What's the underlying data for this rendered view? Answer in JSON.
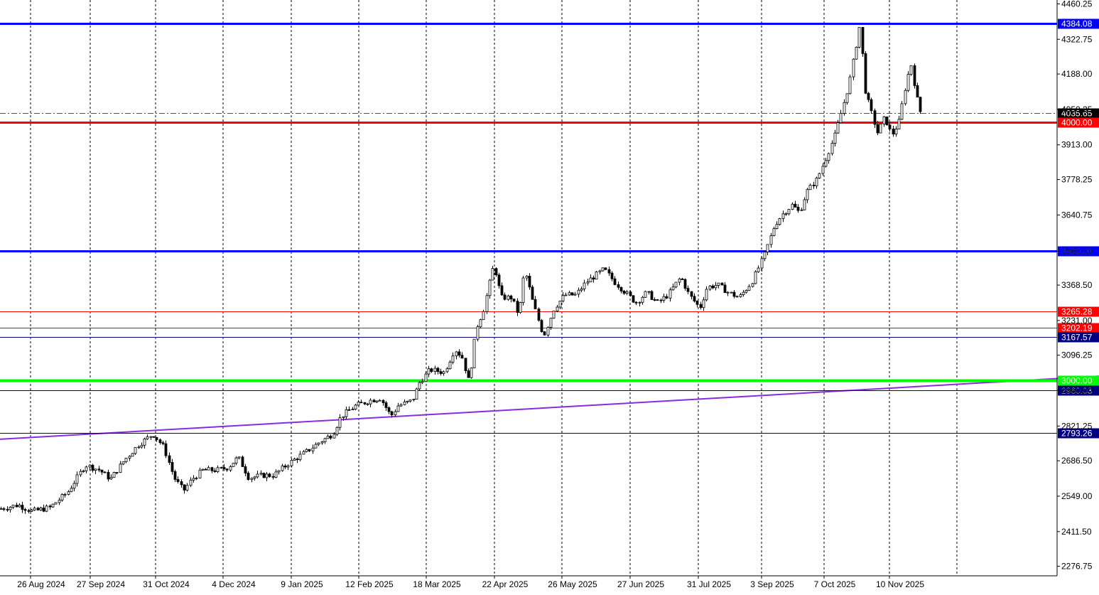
{
  "chart_data": {
    "type": "candlestick",
    "symbol": "",
    "y_axis": {
      "ticks": [
        "4460.25",
        "4322.75",
        "4188.00",
        "4050.25",
        "3913.00",
        "3778.25",
        "3640.75",
        "3500.00",
        "3368.50",
        "3231.00",
        "3096.25",
        "2960.00",
        "2821.25",
        "2686.50",
        "2549.00",
        "2411.50",
        "2276.75"
      ],
      "range": [
        2220,
        4470
      ]
    },
    "x_axis": {
      "ticks": [
        "26 Aug 2024",
        "27 Sep 2024",
        "31 Oct 2024",
        "4 Dec 2024",
        "9 Jan 2025",
        "12 Feb 2025",
        "18 Mar 2025",
        "22 Apr 2025",
        "26 May 2025",
        "27 Jun 2025",
        "31 Jul 2025",
        "3 Sep 2025",
        "7 Oct 2025",
        "10 Nov 2025"
      ]
    },
    "grid": true,
    "horizontal_levels": [
      {
        "label": "4384.08",
        "value": 4384.08,
        "color": "#0000ff",
        "width": "thick"
      },
      {
        "label": "4035.65",
        "value": 4035.65,
        "color": "#1a7a1a",
        "width": "dashdot"
      },
      {
        "label": "4000.00",
        "value": 4000.0,
        "color": "#ff0000",
        "width": "thick"
      },
      {
        "label": "3500.00",
        "value": 3500.0,
        "color": "#0000ff",
        "width": "thick"
      },
      {
        "label": "3265.28",
        "value": 3265.28,
        "color": "#ff0000",
        "width": "thin"
      },
      {
        "label": "3202.19",
        "value": 3202.19,
        "color": "#ff0000",
        "width": "thin"
      },
      {
        "label": "3167.57",
        "value": 3167.57,
        "color": "#000080",
        "width": "thin"
      },
      {
        "label": "3000.00",
        "value": 3000.0,
        "color": "#00ff00",
        "width": "thick"
      },
      {
        "label": "2960.03",
        "value": 2960.03,
        "color": "#000080",
        "width": "thin"
      },
      {
        "label": "2793.26",
        "value": 2793.26,
        "color": "#000080",
        "width": "thin"
      }
    ],
    "trendline": {
      "color": "#8a2be2",
      "start_value": 2770,
      "end_value": 3015
    },
    "price_path": [
      [
        0,
        2500
      ],
      [
        25,
        2515
      ],
      [
        45,
        2490
      ],
      [
        70,
        2505
      ],
      [
        95,
        2565
      ],
      [
        120,
        2670
      ],
      [
        140,
        2650
      ],
      [
        155,
        2615
      ],
      [
        175,
        2690
      ],
      [
        195,
        2750
      ],
      [
        215,
        2790
      ],
      [
        230,
        2740
      ],
      [
        245,
        2620
      ],
      [
        258,
        2570
      ],
      [
        270,
        2615
      ],
      [
        285,
        2650
      ],
      [
        305,
        2650
      ],
      [
        320,
        2660
      ],
      [
        335,
        2700
      ],
      [
        350,
        2620
      ],
      [
        370,
        2630
      ],
      [
        385,
        2630
      ],
      [
        405,
        2675
      ],
      [
        430,
        2720
      ],
      [
        450,
        2760
      ],
      [
        468,
        2790
      ],
      [
        480,
        2860
      ],
      [
        500,
        2900
      ],
      [
        520,
        2920
      ],
      [
        535,
        2930
      ],
      [
        550,
        2860
      ],
      [
        560,
        2900
      ],
      [
        580,
        2920
      ],
      [
        590,
        2990
      ],
      [
        605,
        3040
      ],
      [
        625,
        3030
      ],
      [
        640,
        3120
      ],
      [
        650,
        3090
      ],
      [
        660,
        2990
      ],
      [
        670,
        3200
      ],
      [
        680,
        3270
      ],
      [
        695,
        3450
      ],
      [
        705,
        3320
      ],
      [
        720,
        3320
      ],
      [
        730,
        3250
      ],
      [
        738,
        3430
      ],
      [
        750,
        3300
      ],
      [
        765,
        3170
      ],
      [
        780,
        3280
      ],
      [
        795,
        3330
      ],
      [
        810,
        3330
      ],
      [
        825,
        3380
      ],
      [
        850,
        3430
      ],
      [
        865,
        3380
      ],
      [
        880,
        3340
      ],
      [
        895,
        3300
      ],
      [
        910,
        3340
      ],
      [
        925,
        3300
      ],
      [
        940,
        3330
      ],
      [
        958,
        3400
      ],
      [
        970,
        3330
      ],
      [
        985,
        3280
      ],
      [
        995,
        3360
      ],
      [
        1010,
        3370
      ],
      [
        1025,
        3340
      ],
      [
        1040,
        3320
      ],
      [
        1058,
        3380
      ],
      [
        1075,
        3480
      ],
      [
        1090,
        3600
      ],
      [
        1100,
        3640
      ],
      [
        1115,
        3680
      ],
      [
        1125,
        3650
      ],
      [
        1135,
        3730
      ],
      [
        1150,
        3780
      ],
      [
        1162,
        3860
      ],
      [
        1175,
        3950
      ],
      [
        1185,
        4050
      ],
      [
        1195,
        4150
      ],
      [
        1203,
        4270
      ],
      [
        1210,
        4380
      ],
      [
        1218,
        4120
      ],
      [
        1225,
        4050
      ],
      [
        1235,
        3960
      ],
      [
        1245,
        4020
      ],
      [
        1255,
        3950
      ],
      [
        1265,
        4000
      ],
      [
        1275,
        4150
      ],
      [
        1282,
        4230
      ],
      [
        1290,
        4100
      ],
      [
        1296,
        4035
      ]
    ]
  }
}
